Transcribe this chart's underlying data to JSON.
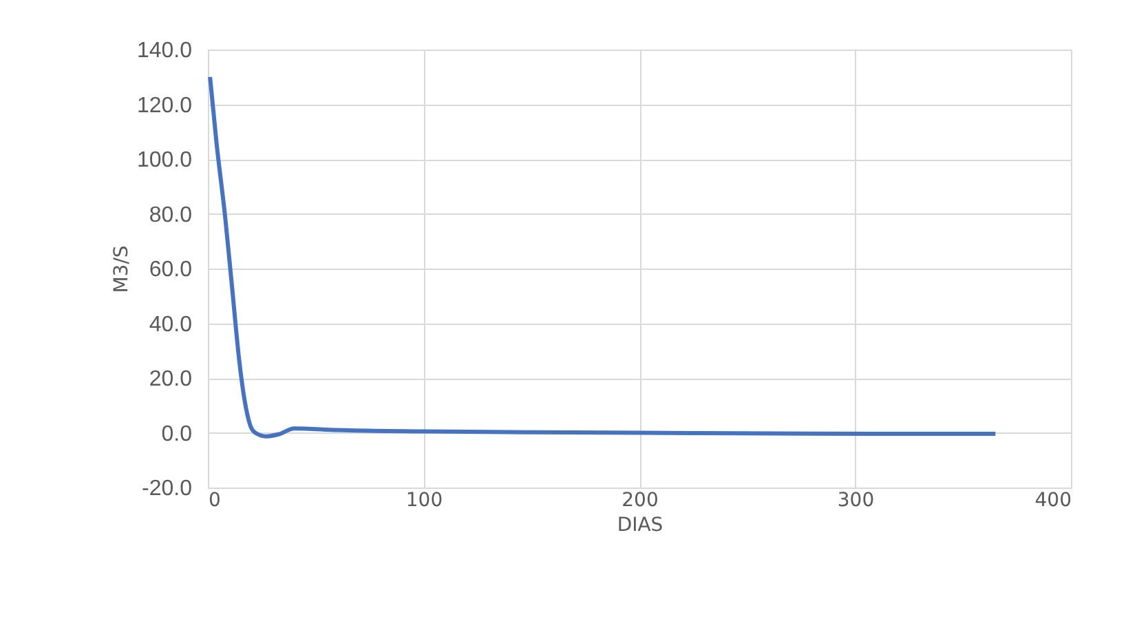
{
  "chart_data": {
    "type": "line",
    "xlabel": "DIAS",
    "ylabel": "M3/S",
    "x": [
      1,
      4,
      8,
      11,
      14.6,
      17,
      19.7,
      22,
      27,
      33,
      40,
      60,
      100,
      150,
      200,
      280,
      365
    ],
    "series": [
      {
        "color": "#4472c4",
        "values": [
          130,
          106,
          79,
          55,
          26,
          12,
          2.6,
          0,
          -1.3,
          -0.5,
          1.6,
          1,
          0.5,
          0.2,
          0,
          -0.3,
          -0.4
        ]
      }
    ],
    "xlim": [
      0,
      400
    ],
    "xticks": [
      0,
      100,
      200,
      300,
      400
    ],
    "ylim": [
      -20,
      140
    ],
    "yticks": [
      {
        "value": -20,
        "label": "-20.0"
      },
      {
        "value": 0,
        "label": "0.0"
      },
      {
        "value": 20,
        "label": "20.0"
      },
      {
        "value": 40,
        "label": "40.0"
      },
      {
        "value": 60,
        "label": "60.0"
      },
      {
        "value": 80,
        "label": "80.0"
      },
      {
        "value": 100,
        "label": "100.0"
      },
      {
        "value": 120,
        "label": "120.0"
      },
      {
        "value": 140,
        "label": "140.0"
      }
    ],
    "grid": true,
    "marker": "none",
    "line_style": "solid"
  }
}
